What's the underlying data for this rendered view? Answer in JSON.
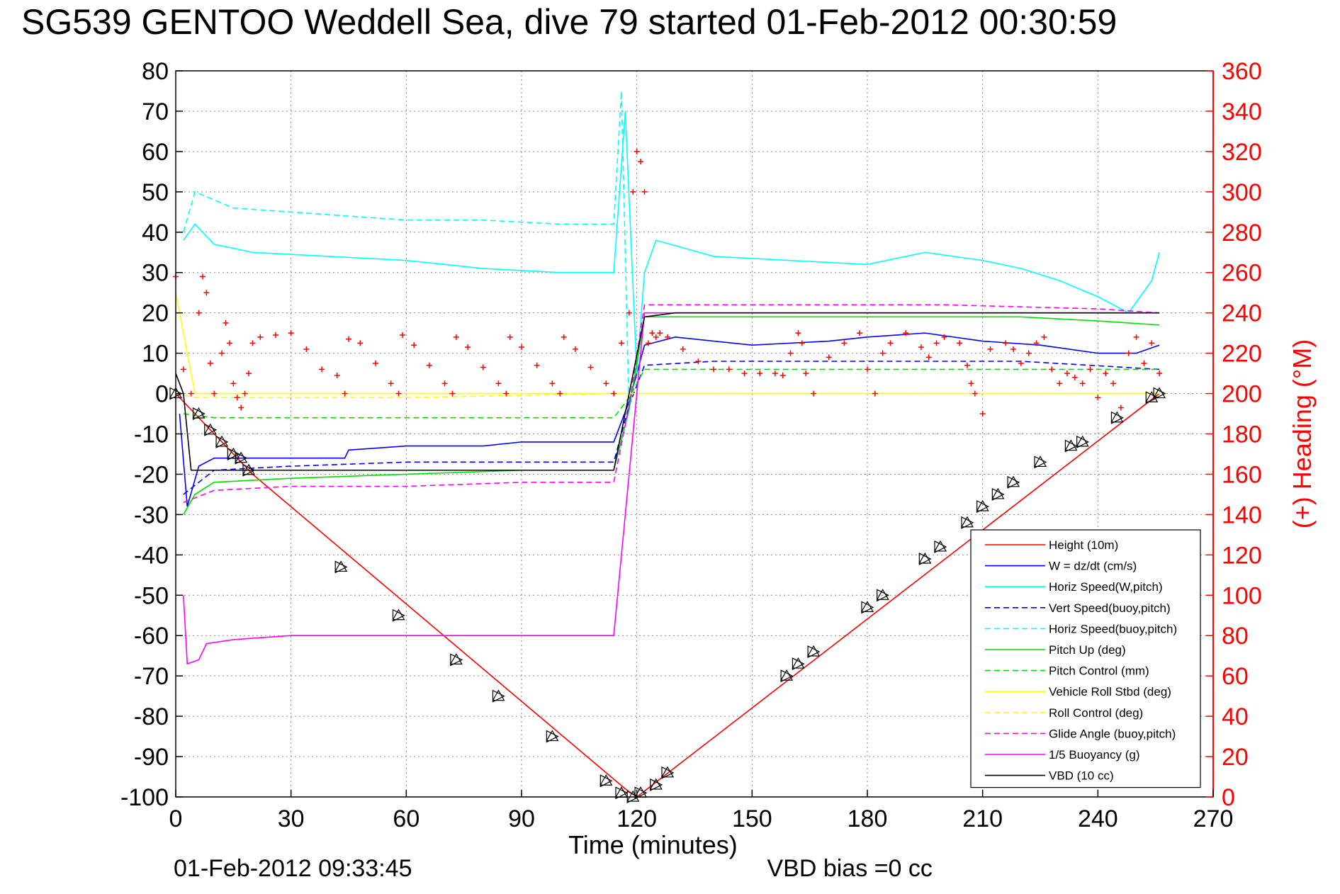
{
  "chart_data": {
    "type": "line",
    "title": "SG539 GENTOO Weddell Sea, dive 79 started 01-Feb-2012 00:30:59",
    "xlabel": "Time (minutes)",
    "ylabel_right": "(+) Heading (°M)",
    "footer_left": "01-Feb-2012 09:33:45",
    "footer_right": "VBD bias =0 cc",
    "xlim": [
      0,
      270
    ],
    "ylim_left": [
      -100,
      80
    ],
    "ylim_right": [
      0,
      360
    ],
    "grid": true,
    "legend_position": "bottom-right",
    "x_ticks": [
      "0",
      "30",
      "60",
      "90",
      "120",
      "150",
      "180",
      "210",
      "240",
      "270"
    ],
    "y_ticks_left": [
      "80",
      "70",
      "60",
      "50",
      "40",
      "30",
      "20",
      "10",
      "0",
      "-10",
      "-20",
      "-30",
      "-40",
      "-50",
      "-60",
      "-70",
      "-80",
      "-90",
      "-100"
    ],
    "y_ticks_right": [
      "360",
      "340",
      "320",
      "300",
      "280",
      "260",
      "240",
      "220",
      "200",
      "180",
      "160",
      "140",
      "120",
      "100",
      "80",
      "60",
      "40",
      "20",
      "0"
    ],
    "series": [
      {
        "name": "Height (10m)",
        "color": "#ff0000",
        "style": "solid",
        "x": [
          0,
          20,
          117,
          120,
          256
        ],
        "y": [
          0,
          -20,
          -98,
          -100,
          0
        ]
      },
      {
        "name": "W = dz/dt (cm/s)",
        "color": "#0000ff",
        "style": "solid",
        "x": [
          1,
          3,
          6,
          10,
          20,
          30,
          44,
          45,
          60,
          80,
          90,
          100,
          114,
          118,
          122,
          130,
          150,
          170,
          180,
          195,
          210,
          225,
          240,
          250,
          256
        ],
        "y": [
          -5,
          -28,
          -18,
          -16,
          -16,
          -16,
          -16,
          -14,
          -13,
          -13,
          -12,
          -12,
          -12,
          -2,
          12,
          14,
          12,
          13,
          14,
          15,
          13,
          12,
          10,
          10,
          12
        ]
      },
      {
        "name": "Horiz Speed(W,pitch)",
        "color": "#00ffff",
        "style": "solid",
        "x": [
          2,
          5,
          10,
          20,
          40,
          60,
          80,
          100,
          114,
          117,
          120,
          122,
          125,
          140,
          160,
          180,
          195,
          210,
          220,
          230,
          240,
          248,
          254,
          256
        ],
        "y": [
          38,
          42,
          37,
          35,
          34,
          33,
          31,
          30,
          30,
          70,
          5,
          30,
          38,
          34,
          33,
          32,
          35,
          33,
          31,
          28,
          24,
          20,
          28,
          35
        ]
      },
      {
        "name": "Vert Speed(buoy,pitch)",
        "color": "#0000ff",
        "style": "dashed",
        "x": [
          2,
          10,
          30,
          60,
          90,
          114,
          118,
          122,
          140,
          180,
          220,
          256
        ],
        "y": [
          -25,
          -19,
          -18,
          -17,
          -17,
          -17,
          -3,
          7,
          8,
          8,
          8,
          6
        ]
      },
      {
        "name": "Horiz Speed(buoy,pitch)",
        "color": "#00ffff",
        "style": "dashed",
        "x": [
          2,
          5,
          15,
          30,
          45,
          60,
          80,
          100,
          114,
          116,
          118
        ],
        "y": [
          40,
          50,
          46,
          45,
          44,
          43,
          43,
          42,
          42,
          75,
          -5
        ]
      },
      {
        "name": "Pitch Up (deg)",
        "color": "#00dd00",
        "style": "solid",
        "x": [
          2,
          5,
          10,
          30,
          60,
          90,
          114,
          118,
          122,
          140,
          160,
          180,
          200,
          220,
          240,
          256
        ],
        "y": [
          -30,
          -25,
          -22,
          -21,
          -20,
          -19,
          -19,
          -4,
          19,
          19,
          19,
          19,
          19,
          19,
          18,
          17
        ]
      },
      {
        "name": "Pitch Control (mm)",
        "color": "#00dd00",
        "style": "dashed",
        "x": [
          2,
          10,
          60,
          114,
          118,
          122,
          180,
          256
        ],
        "y": [
          -5,
          -6,
          -6,
          -6,
          -1,
          6,
          6,
          6
        ]
      },
      {
        "name": "Vehicle Roll Stbd (deg)",
        "color": "#ffff00",
        "style": "solid",
        "x": [
          0,
          5,
          20,
          60,
          100,
          114,
          118,
          122,
          160,
          200,
          240,
          256
        ],
        "y": [
          25,
          0,
          0,
          0,
          0,
          0,
          0,
          0,
          0,
          0,
          0,
          0
        ]
      },
      {
        "name": "Roll Control (deg)",
        "color": "#ffff00",
        "style": "dashed",
        "x": [
          0,
          5,
          60,
          114,
          122,
          256
        ],
        "y": [
          0,
          -1,
          -1,
          0,
          0,
          0
        ]
      },
      {
        "name": "Glide Angle (buoy,pitch)",
        "color": "#ff00ff",
        "style": "dashed",
        "x": [
          2,
          10,
          30,
          60,
          90,
          114,
          118,
          122,
          160,
          200,
          240,
          256
        ],
        "y": [
          -27,
          -24,
          -23,
          -23,
          -22,
          -22,
          -3,
          22,
          22,
          22,
          21,
          20
        ]
      },
      {
        "name": "1/5 Buoyancy (g)",
        "color": "#ff00ff",
        "style": "solid",
        "x": [
          2,
          3,
          6,
          8,
          15,
          30,
          60,
          90,
          114,
          122,
          140,
          180,
          220,
          240,
          256
        ],
        "y": [
          -50,
          -67,
          -66,
          -62,
          -61,
          -60,
          -60,
          -60,
          -60,
          20,
          20,
          20,
          20,
          20,
          20
        ]
      },
      {
        "name": "VBD (10 cc)",
        "color": "#000000",
        "style": "solid",
        "x": [
          0,
          2,
          4,
          114,
          122,
          130,
          256
        ],
        "y": [
          5,
          0,
          -19,
          -19,
          19,
          20,
          20
        ]
      }
    ],
    "heading_series": {
      "color": "#ff0000",
      "marker": "+",
      "x": [
        0,
        2,
        4,
        6,
        7,
        8,
        9,
        10,
        12,
        13,
        14,
        15,
        16,
        17,
        18,
        19,
        20,
        22,
        26,
        30,
        34,
        38,
        42,
        44,
        45,
        48,
        52,
        56,
        58,
        59,
        62,
        66,
        70,
        72,
        73,
        76,
        80,
        84,
        86,
        87,
        90,
        94,
        98,
        100,
        101,
        104,
        108,
        112,
        114,
        116,
        118,
        119,
        120,
        121,
        122,
        123,
        124,
        125,
        126,
        128,
        132,
        136,
        140,
        144,
        148,
        152,
        156,
        158,
        160,
        162,
        163,
        164,
        166,
        170,
        174,
        178,
        180,
        182,
        184,
        186,
        190,
        194,
        196,
        198,
        200,
        204,
        206,
        207,
        208,
        210,
        212,
        216,
        218,
        220,
        222,
        224,
        226,
        228,
        230,
        232,
        234,
        236,
        238,
        240,
        242,
        244,
        246,
        248,
        250,
        252,
        254,
        256
      ],
      "y": [
        258,
        212,
        200,
        240,
        258,
        250,
        215,
        200,
        220,
        235,
        225,
        205,
        198,
        193,
        200,
        210,
        225,
        228,
        229,
        230,
        222,
        212,
        209,
        200,
        227,
        225,
        215,
        205,
        200,
        229,
        224,
        214,
        205,
        200,
        228,
        223,
        213,
        205,
        200,
        228,
        223,
        214,
        205,
        200,
        228,
        222,
        213,
        205,
        200,
        225,
        240,
        300,
        320,
        315,
        300,
        225,
        230,
        228,
        230,
        228,
        222,
        216,
        212,
        212,
        210,
        210,
        210,
        209,
        220,
        230,
        225,
        210,
        200,
        218,
        225,
        230,
        212,
        200,
        220,
        225,
        230,
        223,
        218,
        225,
        228,
        225,
        214,
        205,
        200,
        190,
        222,
        225,
        222,
        215,
        220,
        225,
        228,
        212,
        205,
        210,
        208,
        205,
        212,
        198,
        210,
        205,
        193,
        220,
        228,
        215,
        225,
        210
      ]
    },
    "markers": {
      "triangle_x": [
        0,
        6,
        9,
        12,
        15,
        17,
        19,
        43,
        58,
        73,
        84,
        98,
        112,
        116,
        119,
        121,
        125,
        128,
        159,
        162,
        166,
        180,
        184,
        195,
        199,
        206,
        210,
        214,
        218,
        225,
        233,
        236,
        245,
        254,
        256
      ],
      "triangle_y": [
        0,
        -5,
        -9,
        -12,
        -15,
        -16,
        -19,
        -43,
        -55,
        -66,
        -75,
        -85,
        -96,
        -99,
        -100,
        -99,
        -97,
        -94,
        -70,
        -67,
        -64,
        -53,
        -50,
        -41,
        -38,
        -32,
        -28,
        -25,
        -22,
        -17,
        -13,
        -12,
        -6,
        -1,
        0
      ]
    }
  }
}
